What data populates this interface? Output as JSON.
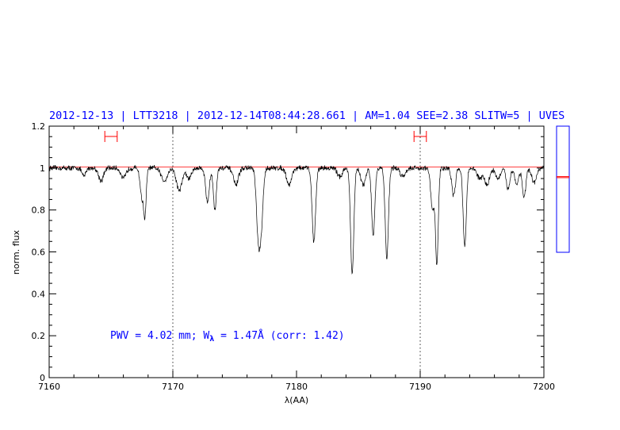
{
  "header": {
    "title": "2012-12-13 | LTT3218 | 2012-12-14T08:44:28.661 | AM=1.04  SEE=2.38  SLITW=5 | UVES"
  },
  "annotation": {
    "prefix": "PWV = 4.02 mm; W",
    "sub": "λ",
    "suffix": " = 1.47Å (corr: 1.42)"
  },
  "colors": {
    "title": "#0000ff",
    "spectrum": "#000000",
    "continuum": "#ff0000",
    "marker": "#ff0000",
    "axes": "#000000"
  },
  "chart_data": {
    "type": "line",
    "title": "",
    "xlabel": "λ(AA)",
    "ylabel": "norm. flux",
    "xlim": [
      7160,
      7200
    ],
    "ylim": [
      0,
      1.2
    ],
    "xticks": [
      7160,
      7170,
      7180,
      7190,
      7200
    ],
    "xtick_labels": [
      "7160",
      "7170",
      "7180",
      "7190",
      "7200"
    ],
    "yticks": [
      0,
      0.2,
      0.4,
      0.6,
      0.8,
      1,
      1.2
    ],
    "ytick_labels": [
      "0",
      "0.2",
      "0.4",
      "0.6",
      "0.8",
      "1",
      "1.2"
    ],
    "vertical_dotted_lines": [
      7170,
      7190
    ],
    "continuum_level": 1.005,
    "continuum_ranges": [
      [
        7164.5,
        7165.5
      ],
      [
        7189.5,
        7190.5
      ]
    ],
    "absorption_lines": [
      {
        "center": 7162.8,
        "depth": 0.04,
        "width": 0.15
      },
      {
        "center": 7164.2,
        "depth": 0.06,
        "width": 0.2
      },
      {
        "center": 7166.0,
        "depth": 0.05,
        "width": 0.2
      },
      {
        "center": 7167.5,
        "depth": 0.14,
        "width": 0.14
      },
      {
        "center": 7167.75,
        "depth": 0.21,
        "width": 0.1
      },
      {
        "center": 7169.3,
        "depth": 0.06,
        "width": 0.25
      },
      {
        "center": 7170.4,
        "depth": 0.05,
        "width": 0.2
      },
      {
        "center": 7170.6,
        "depth": 0.07,
        "width": 0.2
      },
      {
        "center": 7171.3,
        "depth": 0.05,
        "width": 0.2
      },
      {
        "center": 7172.8,
        "depth": 0.16,
        "width": 0.15
      },
      {
        "center": 7173.4,
        "depth": 0.2,
        "width": 0.12
      },
      {
        "center": 7175.1,
        "depth": 0.08,
        "width": 0.2
      },
      {
        "center": 7176.9,
        "depth": 0.3,
        "width": 0.15
      },
      {
        "center": 7177.15,
        "depth": 0.25,
        "width": 0.15
      },
      {
        "center": 7179.4,
        "depth": 0.08,
        "width": 0.2
      },
      {
        "center": 7181.4,
        "depth": 0.35,
        "width": 0.14
      },
      {
        "center": 7183.5,
        "depth": 0.04,
        "width": 0.2
      },
      {
        "center": 7184.5,
        "depth": 0.51,
        "width": 0.13
      },
      {
        "center": 7185.4,
        "depth": 0.08,
        "width": 0.2
      },
      {
        "center": 7186.2,
        "depth": 0.32,
        "width": 0.13
      },
      {
        "center": 7187.3,
        "depth": 0.43,
        "width": 0.13
      },
      {
        "center": 7188.6,
        "depth": 0.04,
        "width": 0.2
      },
      {
        "center": 7191.0,
        "depth": 0.2,
        "width": 0.15
      },
      {
        "center": 7191.35,
        "depth": 0.45,
        "width": 0.11
      },
      {
        "center": 7192.7,
        "depth": 0.13,
        "width": 0.15
      },
      {
        "center": 7193.6,
        "depth": 0.37,
        "width": 0.13
      },
      {
        "center": 7194.8,
        "depth": 0.05,
        "width": 0.2
      },
      {
        "center": 7195.4,
        "depth": 0.08,
        "width": 0.2
      },
      {
        "center": 7196.3,
        "depth": 0.05,
        "width": 0.2
      },
      {
        "center": 7197.1,
        "depth": 0.1,
        "width": 0.15
      },
      {
        "center": 7197.8,
        "depth": 0.08,
        "width": 0.15
      },
      {
        "center": 7198.4,
        "depth": 0.14,
        "width": 0.14
      },
      {
        "center": 7199.2,
        "depth": 0.07,
        "width": 0.2
      }
    ],
    "noise_amplitude": 0.01,
    "side_panel": {
      "ylim": [
        0,
        1.2
      ],
      "markers": [
        0.71,
        0.72
      ]
    }
  }
}
